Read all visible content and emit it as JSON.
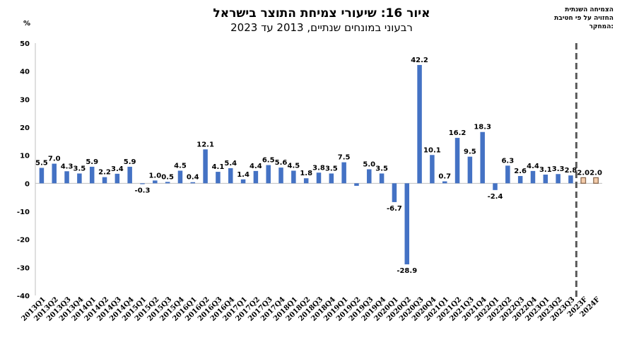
{
  "chart_data": {
    "type": "bar",
    "title": "איור 16: שיעורי צמיחת התוצר בישראל",
    "subtitle": "רבעוני במונחים שנתיים, 2013 עד 2023",
    "ylabel": "%",
    "ylim": [
      -40,
      50
    ],
    "yticks": [
      -40,
      -30,
      -20,
      -10,
      0,
      10,
      20,
      30,
      40,
      50
    ],
    "legend_note": [
      "הצמיחה השנתית",
      "החזויה על פי חטיבת",
      "המחקר:"
    ],
    "categories": [
      "2013Q1",
      "2013Q2",
      "2013Q3",
      "2013Q4",
      "2014Q1",
      "2014Q2",
      "2014Q3",
      "2014Q4",
      "2015Q1",
      "2015Q2",
      "2015Q3",
      "2015Q4",
      "2016Q1",
      "2016Q2",
      "2016Q3",
      "2016Q4",
      "2017Q1",
      "2017Q2",
      "2017Q3",
      "2017Q4",
      "2018Q1",
      "2018Q2",
      "2018Q3",
      "2018Q4",
      "2019Q1",
      "2019Q2",
      "2019Q3",
      "2019Q4",
      "2020Q1",
      "2020Q2",
      "2020Q3",
      "2020Q4",
      "2021Q1",
      "2021Q2",
      "2021Q3",
      "2021Q4",
      "2022Q1",
      "2022Q2",
      "2022Q3",
      "2022Q4",
      "2023Q1",
      "2023Q2",
      "2023Q3",
      "2023F",
      "2024F"
    ],
    "values": [
      5.5,
      7.0,
      4.3,
      3.5,
      5.9,
      2.2,
      3.4,
      5.9,
      -0.3,
      1.0,
      0.5,
      4.5,
      0.4,
      12.1,
      4.1,
      5.4,
      1.4,
      4.4,
      6.5,
      5.6,
      4.5,
      1.8,
      3.8,
      3.5,
      7.5,
      -0.9,
      5.0,
      3.5,
      -6.7,
      -28.9,
      42.2,
      10.1,
      0.7,
      16.2,
      9.5,
      18.3,
      -2.4,
      6.3,
      2.6,
      4.4,
      3.1,
      3.3,
      2.8,
      2.0,
      2.0
    ],
    "labels": [
      "5.5",
      "7.0",
      "4.3",
      "3.5",
      "5.9",
      "2.2",
      "3.4",
      "5.9",
      "-0.3",
      "1.0",
      "0.5",
      "4.5",
      "0.4",
      "12.1",
      "4.1",
      "5.4",
      "1.4",
      "4.4",
      "6.5",
      "5.6",
      "4.5",
      "1.8",
      "3.8",
      "3.5",
      "7.5",
      "-0.9",
      "5.0",
      "3.5",
      "-6.7",
      "-28.9",
      "42.2",
      "10.1",
      "0.7",
      "16.2",
      "9.5",
      "18.3",
      "-2.4",
      "6.3",
      "2.6",
      "4.4",
      "3.1",
      "3.3",
      "2.8",
      "2.0",
      "2.0"
    ],
    "shown_labels": [
      true,
      true,
      true,
      true,
      true,
      true,
      true,
      true,
      true,
      true,
      true,
      true,
      true,
      true,
      true,
      true,
      true,
      true,
      true,
      true,
      true,
      true,
      true,
      true,
      true,
      false,
      true,
      true,
      true,
      true,
      true,
      true,
      true,
      true,
      true,
      true,
      true,
      true,
      true,
      true,
      true,
      true,
      true,
      true,
      true
    ],
    "forecast_from_index": 43,
    "colors": {
      "bar": "#4472C4",
      "forecast_fill": "#F4CCAA",
      "forecast_stroke": "#8B6A50",
      "divider": "#595959"
    }
  }
}
